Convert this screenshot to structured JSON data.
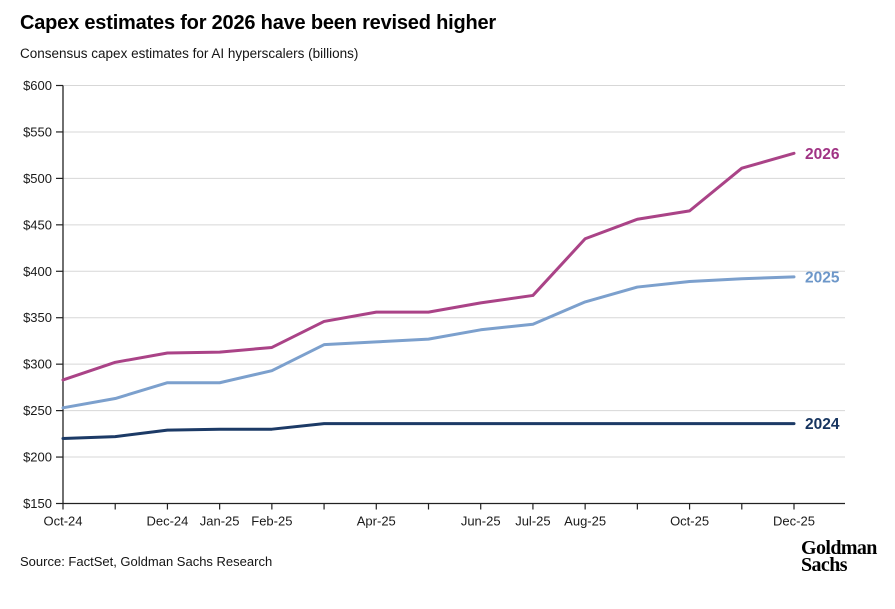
{
  "header": {
    "title": "Capex estimates for 2026 have been revised higher",
    "subtitle": "Consensus capex estimates for AI hyperscalers (billions)"
  },
  "footer": {
    "source": "Source: FactSet, Goldman Sachs Research",
    "logo_line1": "Goldman",
    "logo_line2": "Sachs"
  },
  "colors": {
    "background": "#ffffff",
    "grid": "#d7d7d7",
    "axis": "#222222",
    "tick_text": "#1a1a1a"
  },
  "chart_data": {
    "type": "line",
    "title": "Capex estimates for 2026 have been revised higher",
    "subtitle": "Consensus capex estimates for AI hyperscalers (billions)",
    "unit": "USD billions",
    "grid": "horizontal",
    "legend_position": "end-of-line labels, right side",
    "x_categories": [
      "Oct-24",
      "Nov-24",
      "Dec-24",
      "Jan-25",
      "Feb-25",
      "Mar-25",
      "Apr-25",
      "May-25",
      "Jun-25",
      "Jul-25",
      "Aug-25",
      "Sep-25",
      "Oct-25",
      "Nov-25",
      "Dec-25"
    ],
    "x_tick_labels_shown": [
      "Oct-24",
      "Dec-24",
      "Jan-25",
      "Feb-25",
      "Apr-25",
      "Jun-25",
      "Jul-25",
      "Aug-25",
      "Oct-25",
      "Dec-25"
    ],
    "y_axis": {
      "min": 150,
      "max": 600,
      "step": 50,
      "prefix": "$"
    },
    "y_tick_labels": [
      "$150",
      "$200",
      "$250",
      "$300",
      "$350",
      "$400",
      "$450",
      "$500",
      "$550",
      "$600"
    ],
    "series": [
      {
        "name": "2026",
        "color": "#aa4387",
        "label_color": "#a03384",
        "values": [
          283,
          302,
          312,
          313,
          318,
          346,
          356,
          356,
          366,
          374,
          435,
          456,
          465,
          511,
          527
        ]
      },
      {
        "name": "2025",
        "color": "#7ca0cd",
        "label_color": "#6d97c9",
        "values": [
          253,
          263,
          280,
          280,
          293,
          321,
          324,
          327,
          337,
          343,
          367,
          383,
          389,
          392,
          394
        ]
      },
      {
        "name": "2024",
        "color": "#1c3a66",
        "label_color": "#16345f",
        "values": [
          220,
          222,
          229,
          230,
          230,
          236,
          236,
          236,
          236,
          236,
          236,
          236,
          236,
          236,
          236
        ]
      }
    ]
  }
}
